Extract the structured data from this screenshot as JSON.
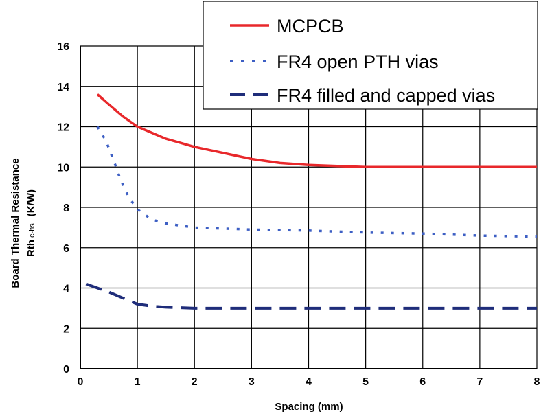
{
  "chart_data": {
    "type": "line",
    "xlabel": "Spacing (mm)",
    "ylabel": "Board Thermal Resistance",
    "ylabel_line2_prefix": "Rth",
    "ylabel_line2_sub": "c-hs",
    "ylabel_line2_suffix": "(K/W)",
    "xlim": [
      0,
      8
    ],
    "ylim": [
      0,
      16
    ],
    "x_ticks": [
      0,
      1,
      2,
      3,
      4,
      5,
      6,
      7,
      8
    ],
    "y_ticks": [
      0,
      2,
      4,
      6,
      8,
      10,
      12,
      14,
      16
    ],
    "grid": true,
    "legend_position": "top-right",
    "series": [
      {
        "name": "MCPCB",
        "color": "#e8282b",
        "style": "solid",
        "points": [
          [
            0.3,
            13.6
          ],
          [
            0.5,
            13.1
          ],
          [
            0.75,
            12.5
          ],
          [
            1.0,
            12.0
          ],
          [
            1.5,
            11.4
          ],
          [
            2.0,
            11.0
          ],
          [
            2.5,
            10.7
          ],
          [
            3.0,
            10.4
          ],
          [
            3.5,
            10.2
          ],
          [
            4.0,
            10.1
          ],
          [
            4.5,
            10.05
          ],
          [
            5.0,
            10.0
          ],
          [
            6.0,
            10.0
          ],
          [
            7.0,
            10.0
          ],
          [
            8.0,
            10.0
          ]
        ]
      },
      {
        "name": "FR4 open PTH vias",
        "color": "#3d5fc4",
        "style": "dotted",
        "points": [
          [
            0.3,
            12.0
          ],
          [
            0.45,
            11.3
          ],
          [
            0.6,
            10.2
          ],
          [
            0.7,
            9.4
          ],
          [
            0.85,
            8.5
          ],
          [
            1.0,
            7.9
          ],
          [
            1.25,
            7.4
          ],
          [
            1.5,
            7.2
          ],
          [
            2.0,
            7.0
          ],
          [
            3.0,
            6.9
          ],
          [
            4.0,
            6.85
          ],
          [
            5.0,
            6.75
          ],
          [
            6.0,
            6.7
          ],
          [
            7.0,
            6.6
          ],
          [
            8.0,
            6.55
          ]
        ]
      },
      {
        "name": "FR4 filled and capped vias",
        "color": "#1f2d7a",
        "style": "dashed",
        "points": [
          [
            0.1,
            4.2
          ],
          [
            0.3,
            4.0
          ],
          [
            0.5,
            3.8
          ],
          [
            0.75,
            3.5
          ],
          [
            1.0,
            3.2
          ],
          [
            1.25,
            3.1
          ],
          [
            1.5,
            3.05
          ],
          [
            2.0,
            3.0
          ],
          [
            3.0,
            3.0
          ],
          [
            4.0,
            3.0
          ],
          [
            5.0,
            3.0
          ],
          [
            6.0,
            3.0
          ],
          [
            7.0,
            3.0
          ],
          [
            8.0,
            3.0
          ]
        ]
      }
    ]
  }
}
